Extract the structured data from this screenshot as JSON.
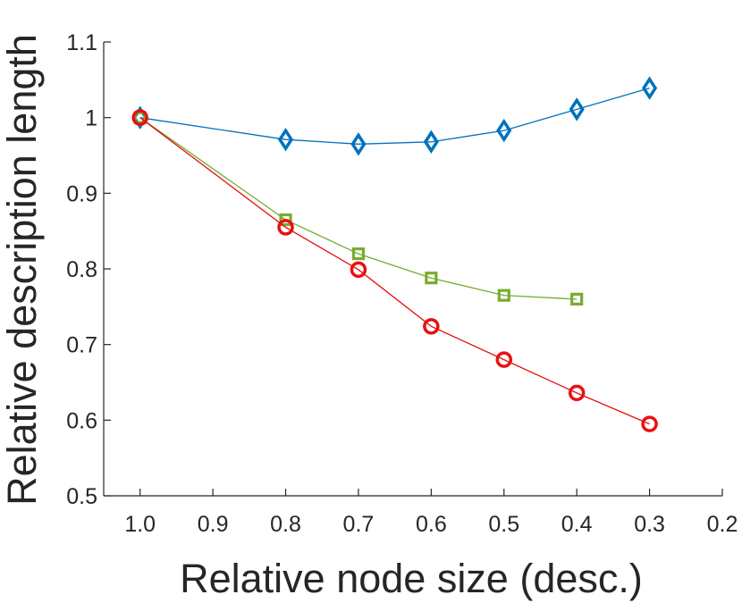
{
  "chart_data": {
    "type": "line",
    "title": "",
    "xlabel": "Relative node size (desc.)",
    "ylabel": "Relative description length",
    "xlim": [
      1.05,
      0.2
    ],
    "ylim": [
      0.5,
      1.1
    ],
    "x_direction": "reversed",
    "grid": false,
    "legend": "none",
    "xticks": [
      1.0,
      0.9,
      0.8,
      0.7,
      0.6,
      0.5,
      0.4,
      0.3,
      0.2
    ],
    "xtick_labels": [
      "1.0",
      "0.9",
      "0.8",
      "0.7",
      "0.6",
      "0.5",
      "0.4",
      "0.3",
      "0.2"
    ],
    "yticks": [
      0.5,
      0.6,
      0.7,
      0.8,
      0.9,
      1.0,
      1.1
    ],
    "ytick_labels": [
      "0.5",
      "0.6",
      "0.7",
      "0.8",
      "0.9",
      "1",
      "1.1"
    ],
    "series": [
      {
        "name": "diamond-series",
        "color": "#0072BD",
        "marker": "diamond",
        "x": [
          1.0,
          0.8,
          0.7,
          0.6,
          0.5,
          0.4,
          0.3
        ],
        "y": [
          1.0,
          0.971,
          0.965,
          0.968,
          0.983,
          1.011,
          1.039
        ]
      },
      {
        "name": "square-series",
        "color": "#77AC30",
        "marker": "square",
        "x": [
          1.0,
          0.8,
          0.7,
          0.6,
          0.5,
          0.4
        ],
        "y": [
          1.0,
          0.865,
          0.82,
          0.788,
          0.765,
          0.76
        ]
      },
      {
        "name": "circle-series",
        "color": "#E81010",
        "marker": "circle",
        "x": [
          1.0,
          0.8,
          0.7,
          0.6,
          0.5,
          0.4,
          0.3
        ],
        "y": [
          1.0,
          0.855,
          0.799,
          0.724,
          0.68,
          0.636,
          0.595
        ]
      }
    ]
  }
}
